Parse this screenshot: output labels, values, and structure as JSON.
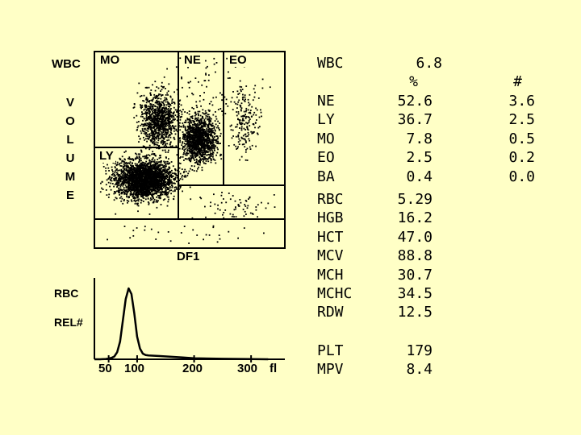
{
  "scatter": {
    "y_label_short": "WBC",
    "y_label_letters": [
      "V",
      "O",
      "L",
      "U",
      "M",
      "E"
    ],
    "x_label": "DF1",
    "regions": [
      "MO",
      "NE",
      "EO",
      "LY"
    ]
  },
  "histogram": {
    "y_label_top": "RBC",
    "y_label_bottom": "REL#",
    "x_unit": "fl",
    "x_ticks": [
      "50",
      "100",
      "200",
      "300"
    ]
  },
  "chart_data": [
    {
      "type": "scatter",
      "xlabel": "DF1",
      "ylabel": "WBC VOLUME",
      "regions": [
        "MO",
        "NE",
        "EO",
        "LY"
      ],
      "grid": false
    },
    {
      "type": "line",
      "xlabel": "fl",
      "ylabel": "RBC REL#",
      "x_ticks": [
        50,
        100,
        200,
        300
      ],
      "x": [
        25,
        35,
        45,
        50,
        55,
        60,
        65,
        70,
        75,
        80,
        85,
        90,
        95,
        100,
        105,
        110,
        115,
        120,
        130,
        140,
        160,
        180,
        200,
        250,
        300,
        330
      ],
      "y": [
        0,
        0,
        0.5,
        1,
        2,
        4,
        10,
        25,
        55,
        85,
        100,
        92,
        65,
        32,
        15,
        8,
        6,
        5.5,
        5,
        4.5,
        3.5,
        2.5,
        1.5,
        0.7,
        0.3,
        0
      ]
    }
  ],
  "results": {
    "wbc": {
      "label": "WBC",
      "value": "6.8"
    },
    "pct_header": "%",
    "abs_header": "#",
    "differential": [
      {
        "label": "NE",
        "pct": "52.6",
        "abs": "3.6"
      },
      {
        "label": "LY",
        "pct": "36.7",
        "abs": "2.5"
      },
      {
        "label": "MO",
        "pct": "7.8",
        "abs": "0.5"
      },
      {
        "label": "EO",
        "pct": "2.5",
        "abs": "0.2"
      },
      {
        "label": "BA",
        "pct": "0.4",
        "abs": "0.0"
      }
    ],
    "rbc_params": [
      {
        "label": "RBC",
        "value": "5.29"
      },
      {
        "label": "HGB",
        "value": "16.2"
      },
      {
        "label": "HCT",
        "value": "47.0"
      },
      {
        "label": "MCV",
        "value": "88.8"
      },
      {
        "label": "MCH",
        "value": "30.7"
      },
      {
        "label": "MCHC",
        "value": "34.5"
      },
      {
        "label": "RDW",
        "value": "12.5"
      }
    ],
    "plt_params": [
      {
        "label": "PLT",
        "value": "179"
      },
      {
        "label": "MPV",
        "value": "8.4"
      }
    ]
  }
}
